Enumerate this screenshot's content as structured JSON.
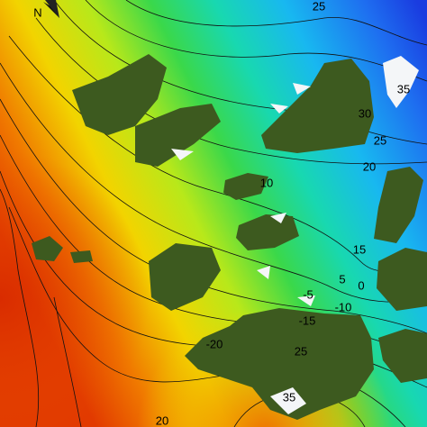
{
  "north_label": "N",
  "contour_labels": [
    "25",
    "35",
    "30",
    "25",
    "20",
    "10",
    "15",
    "5",
    "0",
    "-5",
    "-10",
    "-15",
    "-20",
    "25",
    "35",
    "20"
  ]
}
